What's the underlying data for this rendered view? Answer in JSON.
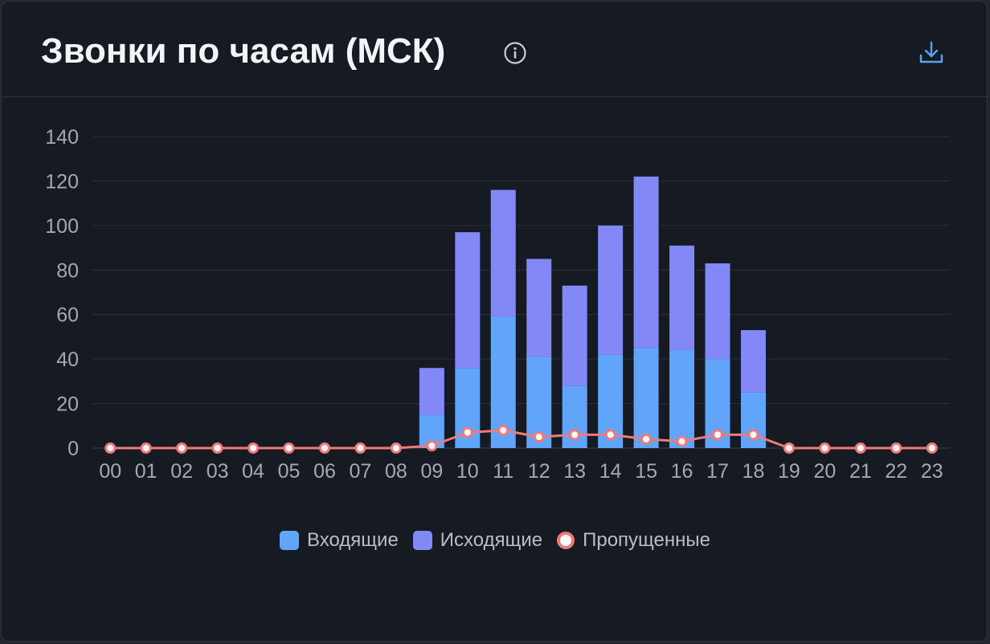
{
  "header": {
    "title": "Звонки по часам (МСК)",
    "info_icon": "info-icon",
    "download_icon": "download-icon"
  },
  "colors": {
    "incoming": "#60a5fa",
    "outgoing": "#8388f7",
    "missed": "#ef7a7a",
    "grid": "#2a2f39",
    "axis_text": "#a3a9b4"
  },
  "chart_data": {
    "type": "bar",
    "stacked": true,
    "categories": [
      "00",
      "01",
      "02",
      "03",
      "04",
      "05",
      "06",
      "07",
      "08",
      "09",
      "10",
      "11",
      "12",
      "13",
      "14",
      "15",
      "16",
      "17",
      "18",
      "19",
      "20",
      "21",
      "22",
      "23"
    ],
    "series": [
      {
        "name": "Входящие",
        "type": "bar",
        "values": [
          0,
          0,
          0,
          0,
          0,
          0,
          0,
          0,
          0,
          15,
          36,
          59,
          41,
          28,
          42,
          45,
          44,
          40,
          25,
          0,
          0,
          0,
          0,
          0
        ]
      },
      {
        "name": "Исходящие",
        "type": "bar",
        "values": [
          0,
          0,
          0,
          0,
          0,
          0,
          0,
          0,
          0,
          21,
          61,
          57,
          44,
          45,
          58,
          77,
          47,
          43,
          28,
          0,
          0,
          0,
          0,
          0
        ]
      },
      {
        "name": "Пропущенные",
        "type": "line",
        "values": [
          0,
          0,
          0,
          0,
          0,
          0,
          0,
          0,
          0,
          1,
          7,
          8,
          5,
          6,
          6,
          4,
          3,
          6,
          6,
          0,
          0,
          0,
          0,
          0
        ]
      }
    ],
    "ylim": [
      0,
      140
    ],
    "yticks": [
      0,
      20,
      40,
      60,
      80,
      100,
      120,
      140
    ],
    "grid": true,
    "legend_position": "bottom"
  }
}
